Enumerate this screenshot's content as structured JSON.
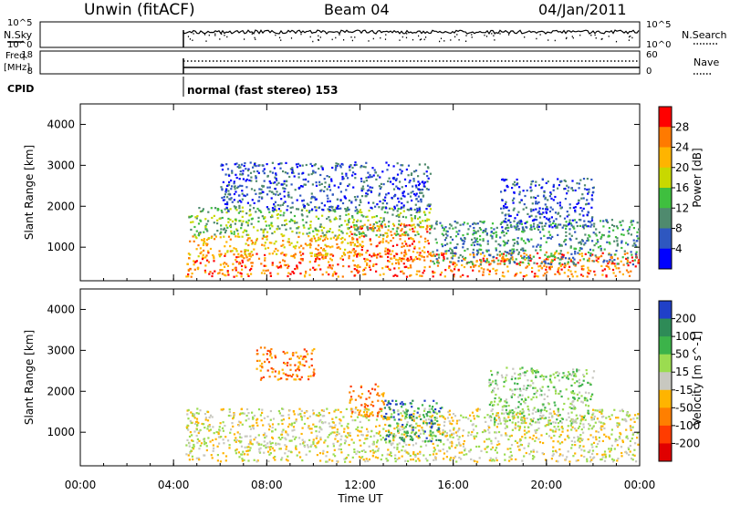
{
  "header": {
    "station": "Unwin (fitACF)",
    "beam": "Beam 04",
    "date": "04/Jan/2011"
  },
  "panel_nsky": {
    "left_label": "N.Sky",
    "right_label": "N.Search",
    "left_ticks": [
      "10^5",
      "10^0"
    ],
    "right_ticks": [
      "10^5",
      "10^0"
    ]
  },
  "panel_freq": {
    "left_label_1": "Freq.",
    "left_label_2": "[MHz]",
    "right_label": "Nave",
    "left_ticks": [
      "18",
      "8"
    ],
    "right_ticks": [
      "60",
      "0"
    ]
  },
  "cpid": {
    "label": "CPID",
    "text": "normal (fast stereo) 153"
  },
  "chart_data": [
    {
      "type": "heatmap",
      "title": "",
      "xlabel": "Time UT",
      "ylabel": "Slant Range [km]",
      "x_ticks": [
        "00:00",
        "04:00",
        "08:00",
        "12:00",
        "16:00",
        "20:00",
        "00:00"
      ],
      "y_ticks": [
        "1000",
        "2000",
        "3000",
        "4000"
      ],
      "xlim_hours": [
        0,
        24
      ],
      "ylim_km": [
        180,
        4500
      ],
      "colorbar": {
        "label": "Power [dB]",
        "ticks": [
          "4",
          "8",
          "12",
          "16",
          "20",
          "24",
          "28"
        ],
        "colors": [
          "#0000ff",
          "#2e57c0",
          "#4f8a6e",
          "#3fbf3f",
          "#c8d800",
          "#ffb400",
          "#ff7a00",
          "#ff0000"
        ]
      },
      "scatter_regions": [
        {
          "t0": 4.5,
          "t1": 24,
          "r0": 300,
          "r1": 900,
          "level": 6
        },
        {
          "t0": 4.6,
          "t1": 12,
          "r0": 800,
          "r1": 1300,
          "level": 5
        },
        {
          "t0": 11.5,
          "t1": 15,
          "r0": 700,
          "r1": 1600,
          "level": 6
        },
        {
          "t0": 4.6,
          "t1": 15,
          "r0": 1300,
          "r1": 2000,
          "level": 3
        },
        {
          "t0": 6,
          "t1": 15,
          "r0": 1900,
          "r1": 3100,
          "level": 1
        },
        {
          "t0": 15,
          "t1": 24,
          "r0": 600,
          "r1": 1700,
          "level": 2
        },
        {
          "t0": 18,
          "t1": 22,
          "r0": 1500,
          "r1": 2700,
          "level": 1
        }
      ]
    },
    {
      "type": "heatmap",
      "title": "",
      "xlabel": "Time UT",
      "ylabel": "Slant Range [km]",
      "x_ticks": [
        "00:00",
        "04:00",
        "08:00",
        "12:00",
        "16:00",
        "20:00",
        "00:00"
      ],
      "y_ticks": [
        "1000",
        "2000",
        "3000",
        "4000"
      ],
      "xlim_hours": [
        0,
        24
      ],
      "ylim_km": [
        180,
        4500
      ],
      "colorbar": {
        "label": "Velocity [m s^-1]",
        "ticks": [
          "200",
          "100",
          "50",
          "15",
          "-15",
          "-50",
          "-100",
          "-200"
        ],
        "colors": [
          "#2040c8",
          "#2e8b57",
          "#3cb34a",
          "#9bdc50",
          "#c8c8c0",
          "#ffb400",
          "#ff7f00",
          "#ff3c00",
          "#e00000"
        ]
      },
      "scatter_regions": [
        {
          "t0": 4.5,
          "t1": 24,
          "r0": 300,
          "r1": 1600,
          "level": 4
        },
        {
          "t0": 13,
          "t1": 15.5,
          "r0": 800,
          "r1": 1800,
          "level": 1
        },
        {
          "t0": 11.5,
          "t1": 13,
          "r0": 1400,
          "r1": 2200,
          "level": 6
        },
        {
          "t0": 7.5,
          "t1": 10,
          "r0": 2300,
          "r1": 3100,
          "level": 6
        },
        {
          "t0": 17.5,
          "t1": 22,
          "r0": 1200,
          "r1": 2600,
          "level": 3
        }
      ]
    }
  ]
}
